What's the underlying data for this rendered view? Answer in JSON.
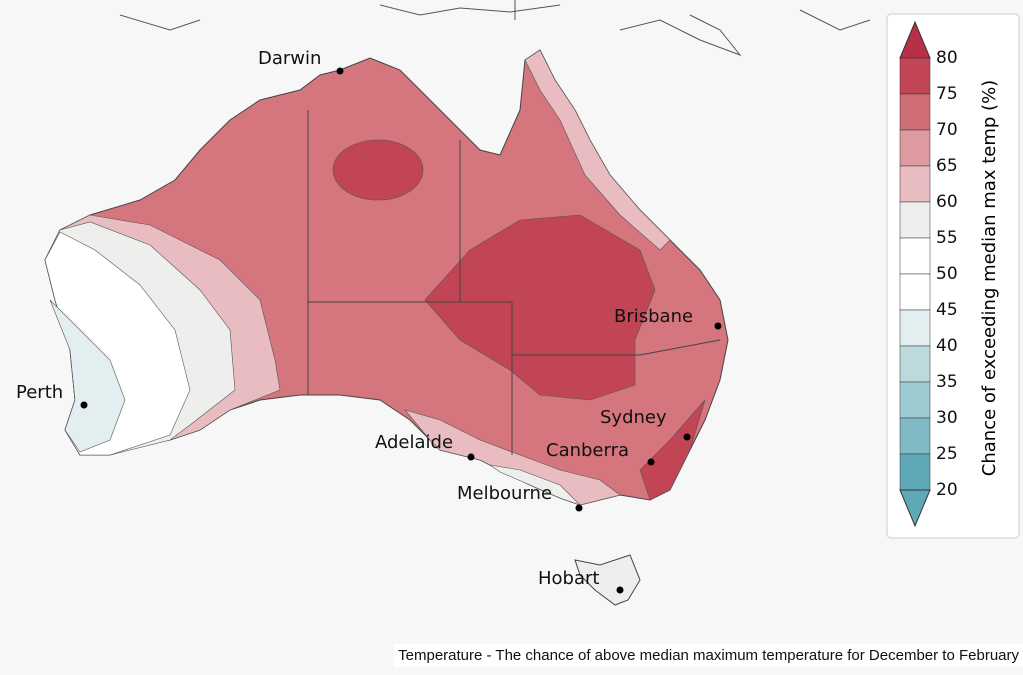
{
  "map": {
    "cities": [
      "Darwin",
      "Brisbane",
      "Perth",
      "Sydney",
      "Adelaide",
      "Canberra",
      "Melbourne",
      "Hobart"
    ],
    "legend": {
      "title": "Chance of exceeding median max temp (%)",
      "ticks": [
        80,
        75,
        70,
        65,
        60,
        55,
        50,
        45,
        40,
        35,
        30,
        25,
        20
      ],
      "colors": [
        "#c24555",
        "#cf6e77",
        "#dd9aa0",
        "#e8bcc0",
        "#eeeeec",
        "#ffffff",
        "#ffffff",
        "#e3eef0",
        "#bcdadd",
        "#9ecad1",
        "#7fb9c4",
        "#5ea8b8"
      ],
      "top_color": "#b83048",
      "bottom_color": "#5ea8b8"
    },
    "caption": "Temperature - The chance of above median maximum temperature for December to February"
  }
}
